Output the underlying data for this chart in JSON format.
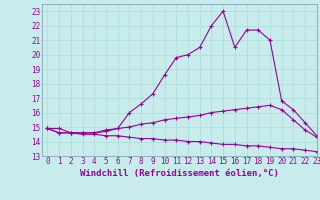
{
  "xlabel": "Windchill (Refroidissement éolien,°C)",
  "bg_color": "#c8ecec",
  "line_color": "#990099",
  "grid_color": "#aadddd",
  "xlim": [
    -0.5,
    23
  ],
  "ylim": [
    13,
    23.5
  ],
  "xticks": [
    0,
    1,
    2,
    3,
    4,
    5,
    6,
    7,
    8,
    9,
    10,
    11,
    12,
    13,
    14,
    15,
    16,
    17,
    18,
    19,
    20,
    21,
    22,
    23
  ],
  "yticks": [
    13,
    14,
    15,
    16,
    17,
    18,
    19,
    20,
    21,
    22,
    23
  ],
  "line1_x": [
    0,
    1,
    2,
    3,
    4,
    5,
    6,
    7,
    8,
    9,
    10,
    11,
    12,
    13,
    14,
    15,
    16,
    17,
    18,
    19,
    20,
    21,
    22,
    23
  ],
  "line1_y": [
    14.9,
    14.9,
    14.6,
    14.6,
    14.6,
    14.8,
    14.9,
    16.0,
    16.6,
    17.3,
    18.6,
    19.8,
    20.0,
    20.5,
    22.0,
    23.0,
    20.5,
    21.7,
    21.7,
    21.0,
    16.8,
    16.2,
    15.3,
    14.4
  ],
  "line2_x": [
    0,
    1,
    2,
    3,
    4,
    5,
    6,
    7,
    8,
    9,
    10,
    11,
    12,
    13,
    14,
    15,
    16,
    17,
    18,
    19,
    20,
    21,
    22,
    23
  ],
  "line2_y": [
    14.9,
    14.6,
    14.6,
    14.6,
    14.6,
    14.7,
    14.9,
    15.0,
    15.2,
    15.3,
    15.5,
    15.6,
    15.7,
    15.8,
    16.0,
    16.1,
    16.2,
    16.3,
    16.4,
    16.5,
    16.2,
    15.5,
    14.8,
    14.3
  ],
  "line3_x": [
    0,
    1,
    2,
    3,
    4,
    5,
    6,
    7,
    8,
    9,
    10,
    11,
    12,
    13,
    14,
    15,
    16,
    17,
    18,
    19,
    20,
    21,
    22,
    23
  ],
  "line3_y": [
    14.9,
    14.6,
    14.6,
    14.5,
    14.5,
    14.4,
    14.4,
    14.3,
    14.2,
    14.2,
    14.1,
    14.1,
    14.0,
    14.0,
    13.9,
    13.8,
    13.8,
    13.7,
    13.7,
    13.6,
    13.5,
    13.5,
    13.4,
    13.3
  ],
  "marker": "+",
  "markersize": 3,
  "linewidth": 0.8,
  "tick_fontsize": 5.5,
  "label_fontsize": 6.5
}
